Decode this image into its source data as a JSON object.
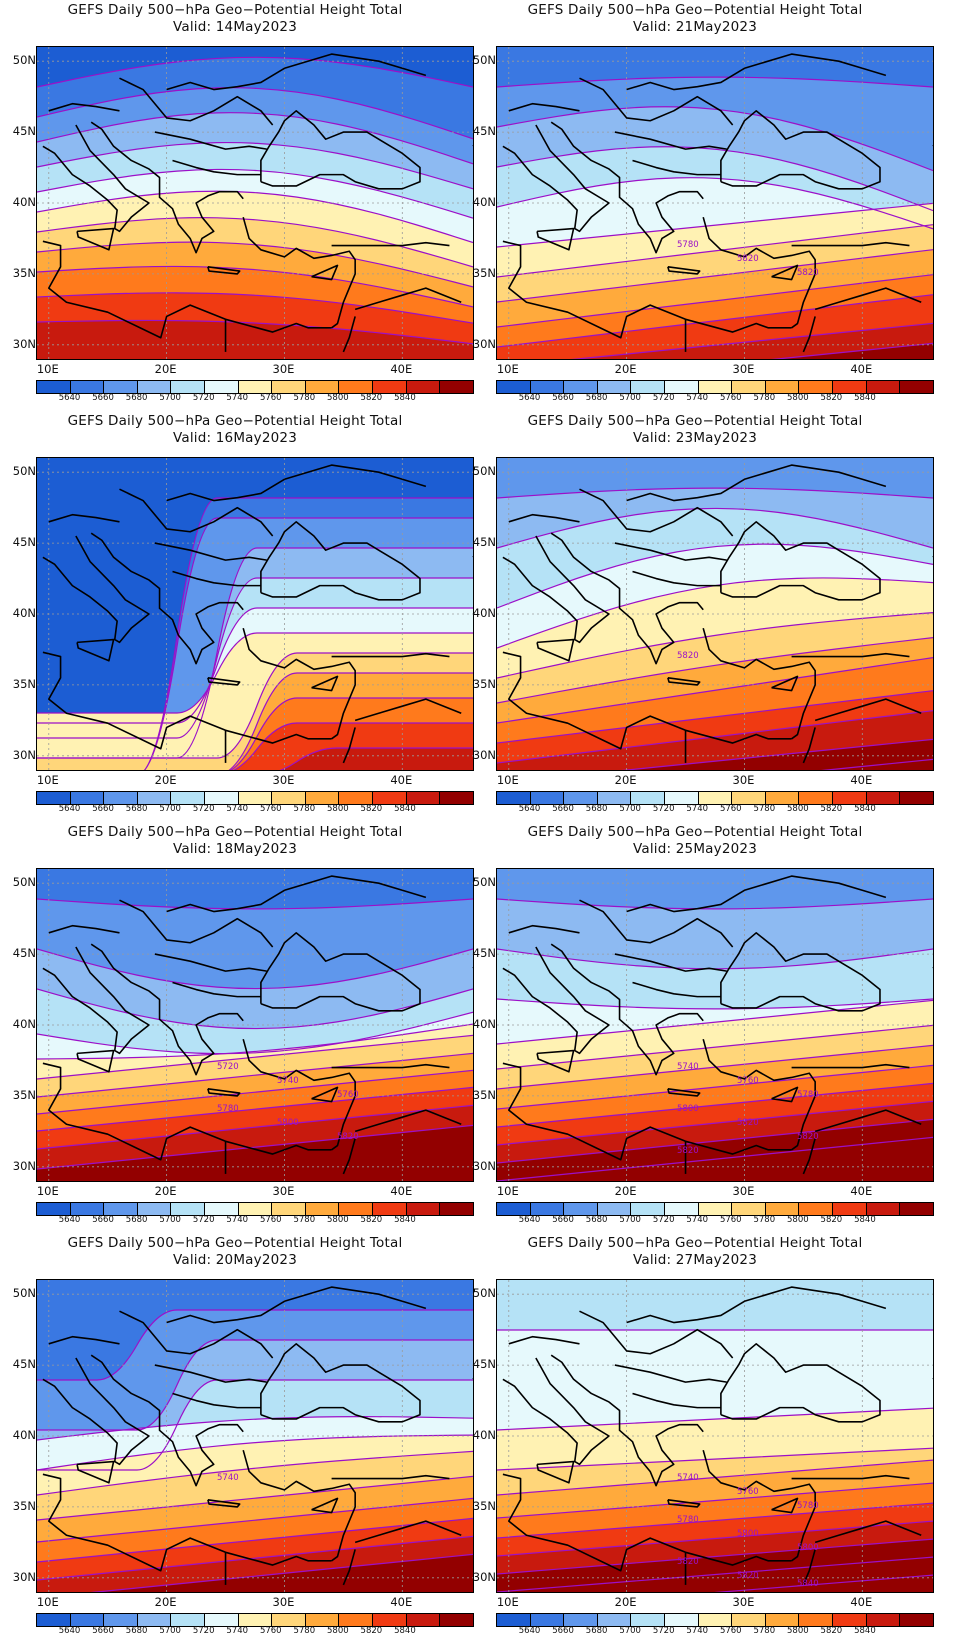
{
  "header": {
    "title_text": "GEFS Daily 500−hPa Geo−Potential Height Total"
  },
  "axes": {
    "lat_labels": [
      "50N",
      "45N",
      "40N",
      "35N",
      "30N"
    ],
    "lon_labels": [
      "10E",
      "20E",
      "30E",
      "40E"
    ]
  },
  "colorbar": {
    "levels": [
      "5640",
      "5660",
      "5680",
      "5700",
      "5720",
      "5740",
      "5760",
      "5780",
      "5800",
      "5820",
      "5840"
    ],
    "colors": [
      "#1c5dd3",
      "#3a78e2",
      "#5f97ec",
      "#8dbaf2",
      "#b5e2f6",
      "#e6f9fc",
      "#fff2b3",
      "#ffd67a",
      "#ffaa3c",
      "#ff7a1c",
      "#f03a12",
      "#c81a0e",
      "#930000"
    ]
  },
  "contour_line_color": "#9c10c8",
  "panels": [
    {
      "valid": "Valid: 14May2023",
      "contour_labels": []
    },
    {
      "valid": "Valid: 21May2023",
      "contour_labels": [
        "5780",
        "5820",
        "5820"
      ]
    },
    {
      "valid": "Valid: 16May2023",
      "contour_labels": []
    },
    {
      "valid": "Valid: 23May2023",
      "contour_labels": [
        "5820"
      ]
    },
    {
      "valid": "Valid: 18May2023",
      "contour_labels": [
        "5720",
        "5740",
        "5760",
        "5780",
        "5800",
        "5820"
      ]
    },
    {
      "valid": "Valid: 25May2023",
      "contour_labels": [
        "5740",
        "5760",
        "5780",
        "5800",
        "5820",
        "5820",
        "5820"
      ]
    },
    {
      "valid": "Valid: 20May2023",
      "contour_labels": [
        "5740"
      ]
    },
    {
      "valid": "Valid: 27May2023",
      "contour_labels": [
        "5740",
        "5760",
        "5780",
        "5780",
        "5800",
        "5800",
        "5820",
        "5820",
        "5840"
      ]
    }
  ]
}
